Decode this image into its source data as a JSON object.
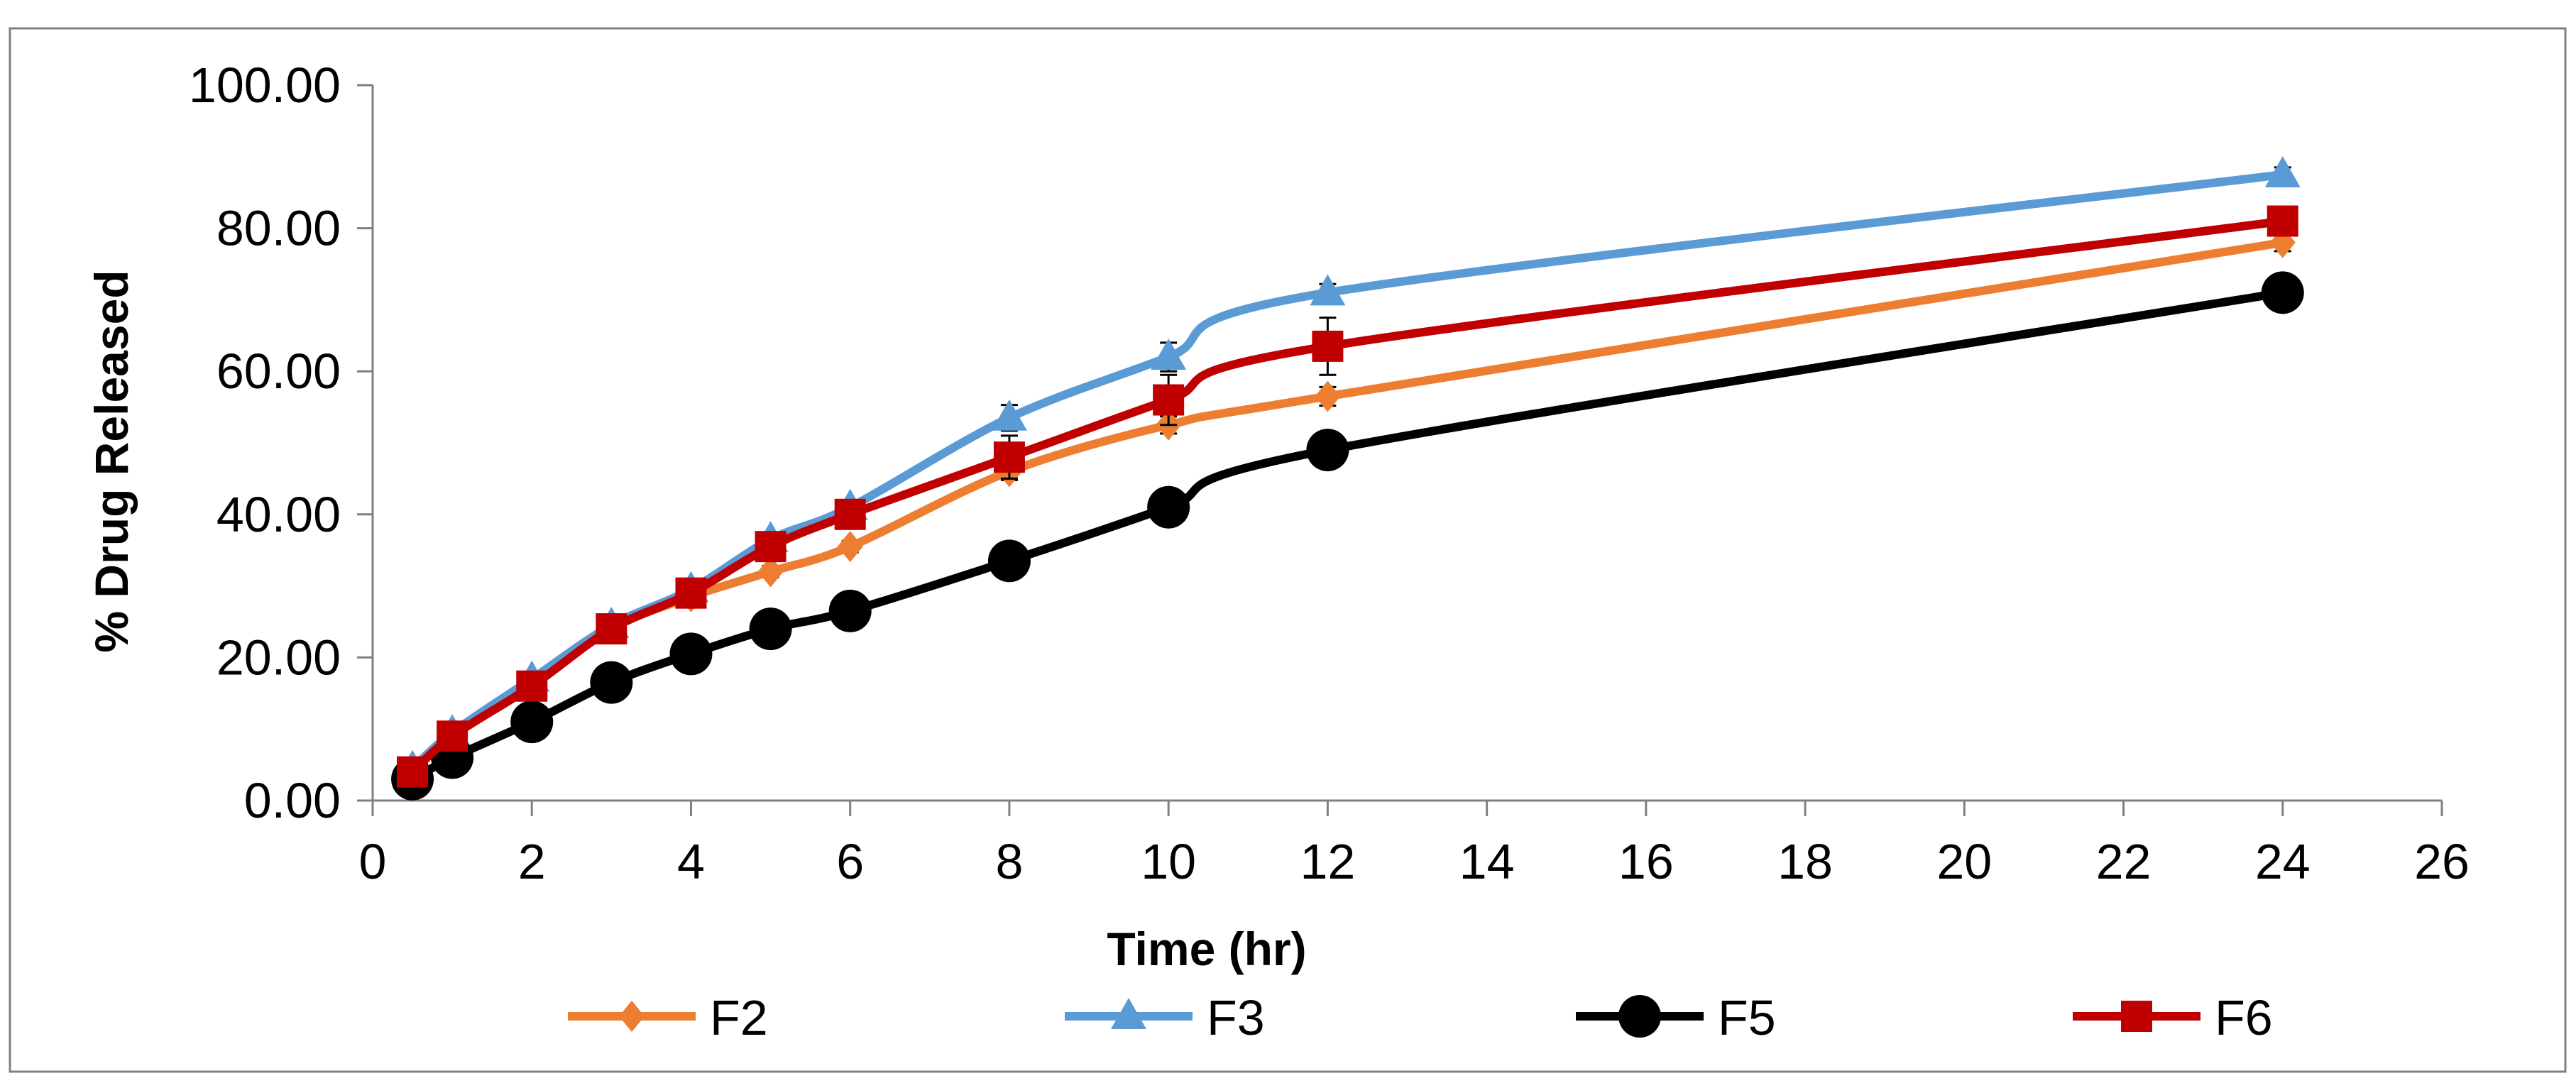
{
  "chart_data": {
    "type": "line",
    "title": "",
    "xlabel": "Time (hr)",
    "ylabel": "% Drug Released",
    "xlim": [
      0,
      26
    ],
    "ylim": [
      0,
      100
    ],
    "x_ticks": [
      0,
      2,
      4,
      6,
      8,
      10,
      12,
      14,
      16,
      18,
      20,
      22,
      24,
      26
    ],
    "x_tick_labels": [
      "0",
      "2",
      "4",
      "6",
      "8",
      "10",
      "12",
      "14",
      "16",
      "18",
      "20",
      "22",
      "24",
      "26"
    ],
    "y_ticks": [
      0,
      20,
      40,
      60,
      80,
      100
    ],
    "y_tick_labels": [
      "0.00",
      "20.00",
      "40.00",
      "60.00",
      "80.00",
      "100.00"
    ],
    "grid": false,
    "legend_position": "bottom",
    "series": [
      {
        "name": "F2",
        "color": "#ED7D31",
        "marker": "diamond",
        "x": [
          0.5,
          1,
          2,
          3,
          4,
          5,
          6,
          8,
          10,
          12,
          24
        ],
        "values": [
          4,
          9,
          16,
          24,
          28.5,
          32,
          35.5,
          46,
          52.5,
          56.5,
          78
        ],
        "errors": [
          0.5,
          0.5,
          0.6,
          0.6,
          0.7,
          0.8,
          0.8,
          1.2,
          1.2,
          1.3,
          1.2
        ]
      },
      {
        "name": "F3",
        "color": "#5B9BD5",
        "marker": "triangle",
        "x": [
          0.5,
          1,
          2,
          3,
          4,
          5,
          6,
          8,
          10,
          12,
          24
        ],
        "values": [
          4.5,
          9.5,
          17,
          24.5,
          29.5,
          36.5,
          41,
          53.5,
          62,
          71,
          87.5
        ],
        "errors": [
          0.5,
          0.5,
          0.6,
          0.6,
          0.7,
          0.8,
          0.8,
          1.8,
          2.0,
          1.2,
          1.0
        ]
      },
      {
        "name": "F5",
        "color": "#000000",
        "marker": "circle",
        "x": [
          0.5,
          1,
          2,
          3,
          4,
          5,
          6,
          8,
          10,
          12,
          24
        ],
        "values": [
          3,
          6,
          11,
          16.5,
          20.5,
          24,
          26.5,
          33.5,
          41,
          49,
          71
        ],
        "errors": [
          0.4,
          0.4,
          0.5,
          0.5,
          0.6,
          0.6,
          0.7,
          0.8,
          0.9,
          1.0,
          1.0
        ]
      },
      {
        "name": "F6",
        "color": "#C00000",
        "marker": "square",
        "x": [
          0.5,
          1,
          2,
          3,
          4,
          5,
          6,
          8,
          10,
          12,
          24
        ],
        "values": [
          4,
          9,
          16,
          24,
          29,
          35.5,
          40,
          48,
          56,
          63.5,
          81
        ],
        "errors": [
          0.5,
          0.5,
          0.6,
          0.6,
          0.8,
          1.0,
          1.0,
          3.0,
          3.5,
          4.0,
          1.5
        ]
      }
    ]
  }
}
